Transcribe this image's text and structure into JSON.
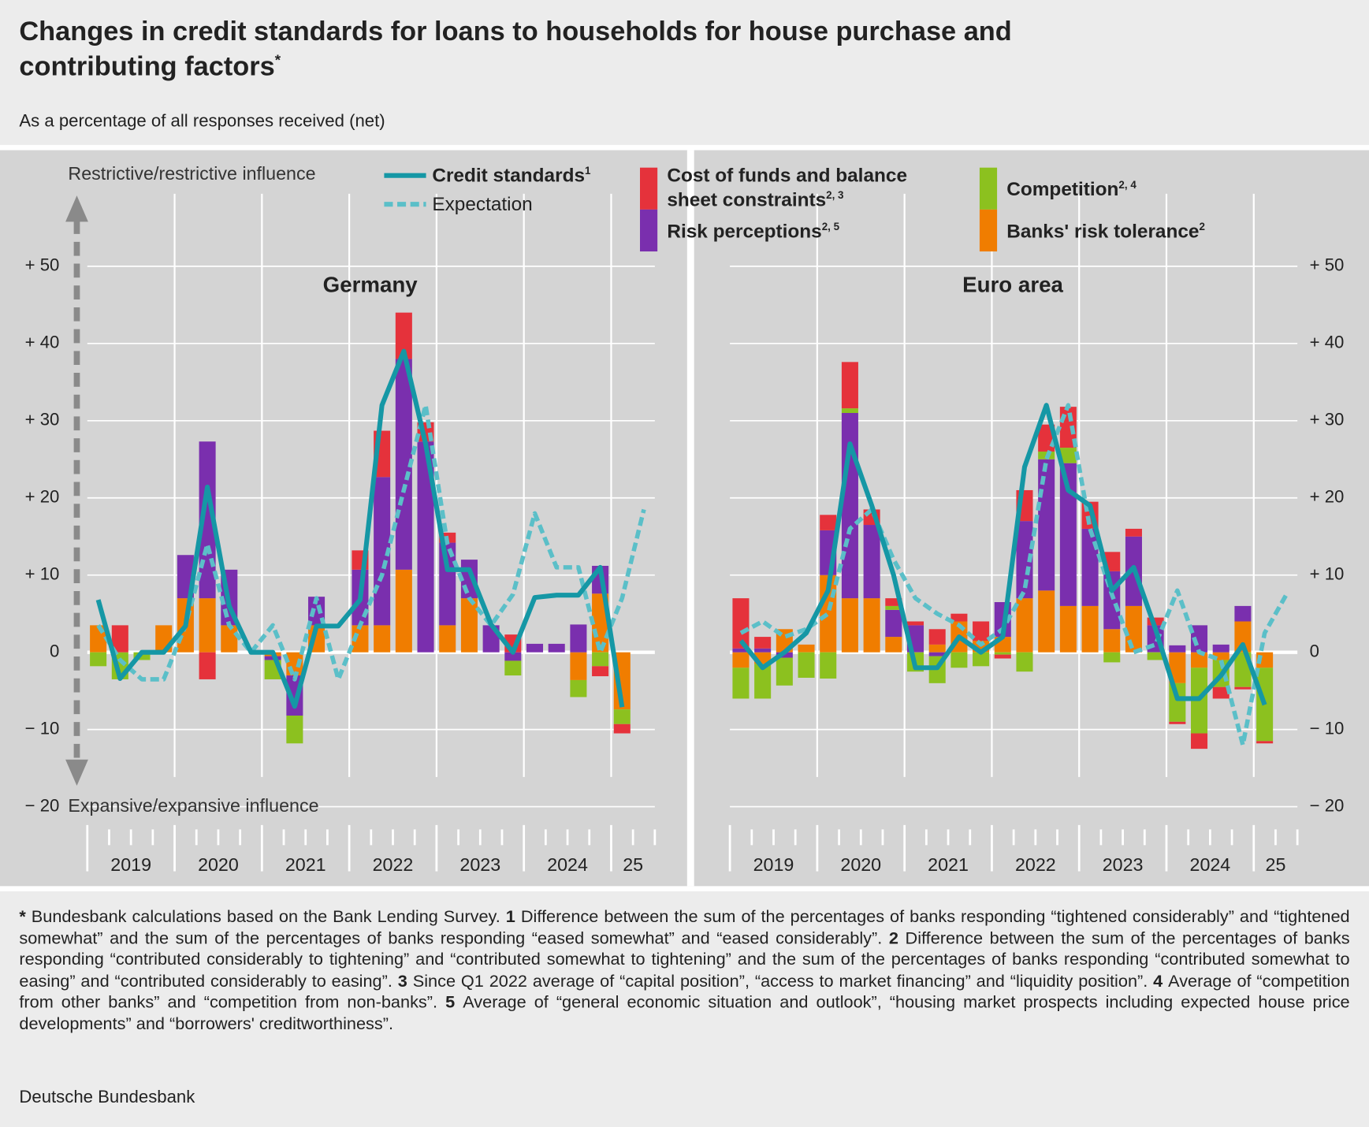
{
  "chart_data": [
    {
      "type": "combo",
      "page_title": "Changes in credit standards for loans to households for house purchase and contributing factors",
      "page_title_note": "*",
      "subtitle": "As a percentage of all responses received (net)",
      "ylabel_top": "Restrictive/restrictive influence",
      "ylabel_bottom": "Expansive/expansive influence",
      "source": "Deutsche Bundesbank",
      "footnotes": [
        {
          "marker": "*",
          "text": "Bundesbank calculations based on the Bank Lending Survey."
        },
        {
          "marker": "1",
          "text": "Difference between the sum of the percentages of banks responding “tightened considerably” and “tightened somewhat” and the sum of the percentages of banks responding “eased somewhat” and “eased considerably”."
        },
        {
          "marker": "2",
          "text": "Difference between the sum of the percentages of banks responding “contributed considerably to tightening” and “contributed somewhat to tightening” and the sum of the percentages of banks responding “contributed somewhat to easing” and “contributed considerably to easing”."
        },
        {
          "marker": "3",
          "text": "Since Q1 2022 average of “capital position”, “access to market financing” and “liquidity position”."
        },
        {
          "marker": "4",
          "text": "Average of “competition from other banks” and “competition from non-banks”."
        },
        {
          "marker": "5",
          "text": "Average of “general economic situation and outlook”, “housing market prospects including expected house price developments” and “borrowers' creditworthiness”."
        }
      ],
      "title": "Germany",
      "years": [
        "2019",
        "2020",
        "2021",
        "2022",
        "2023",
        "2024",
        "25"
      ],
      "ylim": [
        -20,
        50
      ],
      "yticks": [
        {
          "value": -20,
          "label": "− 20"
        },
        {
          "value": -10,
          "label": "− 10"
        },
        0,
        {
          "value": 10,
          "label": "+ 10"
        },
        {
          "value": 20,
          "label": "+ 20"
        },
        {
          "value": 30,
          "label": "+ 30"
        },
        {
          "value": 40,
          "label": "+ 40"
        },
        {
          "value": 50,
          "label": "+ 50"
        }
      ],
      "grid": true,
      "series": [
        {
          "name": "Credit standards",
          "note": "1",
          "type": "line",
          "color": "#1597a5",
          "values": [
            6.8,
            -3.4,
            0,
            0,
            3.4,
            21.4,
            6,
            0,
            0,
            -7,
            3.4,
            3.4,
            6.8,
            32,
            39,
            27,
            10.7,
            10.7,
            3.6,
            0,
            7.1,
            7.4,
            7.4,
            11,
            -7.1,
            null
          ]
        },
        {
          "name": "Expectation",
          "type": "line",
          "dashed": true,
          "color": "#5bbfc8",
          "values": [
            3.5,
            -1,
            -3.5,
            -3.5,
            3.5,
            14,
            3.5,
            0,
            3.5,
            -3.5,
            7,
            -3.5,
            3.5,
            10,
            21,
            32,
            14,
            7,
            3.5,
            7.5,
            18,
            11,
            11,
            0,
            7,
            18.5
          ]
        },
        {
          "name": "Cost of funds and balance sheet constraints",
          "note": "2, 3",
          "type": "bar",
          "color": "#e5323b",
          "values": [
            0,
            3.5,
            0,
            0,
            0,
            -3.5,
            0,
            0,
            0,
            0,
            0,
            0,
            2.5,
            6,
            6,
            2.5,
            1.3,
            0,
            0,
            2.3,
            0,
            0,
            0,
            -1.3,
            -1.2,
            null
          ]
        },
        {
          "name": "Risk perceptions",
          "note": "2, 5",
          "type": "bar",
          "color": "#7a2fae",
          "values": [
            0,
            0,
            0,
            0,
            5.6,
            20.3,
            7.2,
            0,
            -0.5,
            -5.2,
            3.7,
            0,
            7.2,
            19.2,
            27.3,
            27.3,
            10.7,
            5,
            3.5,
            -1.1,
            1.1,
            1.1,
            3.6,
            3.6,
            0,
            null
          ]
        },
        {
          "name": "Competition",
          "note": "2, 4",
          "type": "bar",
          "color": "#8cc11f",
          "values": [
            -1.8,
            -3.5,
            -1,
            0,
            0,
            0,
            0,
            0,
            -2.5,
            -3.6,
            0,
            0,
            0,
            0,
            0,
            0,
            0,
            0,
            0,
            -1.9,
            0,
            0,
            -2.2,
            -1.8,
            -1.9,
            null
          ]
        },
        {
          "name": "Banks' risk tolerance",
          "note": "2",
          "type": "bar",
          "color": "#f07d00",
          "values": [
            3.5,
            0,
            0,
            3.5,
            7,
            7,
            3.5,
            0,
            -0.5,
            -3,
            3.5,
            0,
            3.5,
            3.5,
            10.7,
            0,
            3.5,
            7,
            0,
            0,
            0,
            0,
            -3.6,
            7.6,
            -7.4,
            null
          ]
        }
      ]
    },
    {
      "type": "combo",
      "title": "Euro area",
      "years": [
        "2019",
        "2020",
        "2021",
        "2022",
        "2023",
        "2024",
        "25"
      ],
      "ylim": [
        -20,
        50
      ],
      "yticks": [
        {
          "value": -20,
          "label": "− 20"
        },
        {
          "value": -10,
          "label": "− 10"
        },
        0,
        {
          "value": 10,
          "label": "+ 10"
        },
        {
          "value": 20,
          "label": "+ 20"
        },
        {
          "value": 30,
          "label": "+ 30"
        },
        {
          "value": 40,
          "label": "+ 40"
        },
        {
          "value": 50,
          "label": "+ 50"
        }
      ],
      "grid": true,
      "series": [
        {
          "type": "line",
          "color": "#1597a5",
          "values": [
            1.5,
            -2,
            0,
            2.5,
            8,
            27,
            19,
            10,
            -2,
            -2,
            2,
            0,
            2,
            24,
            32,
            21,
            19,
            8,
            11,
            3,
            -6,
            -6,
            -3,
            1,
            -6.8,
            null
          ]
        },
        {
          "type": "line",
          "dashed": true,
          "color": "#5bbfc8",
          "values": [
            2.5,
            4,
            2,
            3,
            5,
            16,
            18.5,
            12,
            7,
            5,
            3.5,
            1,
            3,
            8,
            25,
            32,
            16,
            7.5,
            0,
            1,
            8,
            0,
            -1,
            -12,
            2.5,
            7.5
          ]
        },
        {
          "type": "bar",
          "color": "#e5323b",
          "values": [
            6.5,
            1.5,
            0,
            0,
            2,
            6,
            2,
            1,
            0.5,
            2,
            1,
            2.5,
            -0.5,
            4,
            3.5,
            5.3,
            3.5,
            2.5,
            1,
            1,
            -0.3,
            -2,
            -1.5,
            -0.3,
            -0.3,
            null
          ]
        },
        {
          "type": "bar",
          "color": "#7a2fae",
          "values": [
            0.5,
            0.5,
            -0.7,
            0,
            5.8,
            24,
            9.5,
            3.5,
            3.5,
            -0.5,
            0,
            0,
            4.5,
            10,
            17,
            18.5,
            10,
            7.5,
            9,
            3.5,
            0.9,
            3.5,
            1,
            2,
            0,
            null
          ]
        },
        {
          "type": "bar",
          "color": "#8cc11f",
          "values": [
            -4,
            -4.5,
            -3.6,
            -3.3,
            -3.4,
            0.6,
            0,
            0.5,
            -2.5,
            -3.5,
            -2,
            -1.8,
            -0.3,
            -2.5,
            1,
            2,
            0,
            -1.3,
            0,
            -1,
            -5,
            -8.5,
            -3.5,
            -4.5,
            -9.5,
            null
          ]
        },
        {
          "type": "bar",
          "color": "#f07d00",
          "values": [
            -2,
            -1.5,
            3,
            1,
            10,
            7,
            7,
            2,
            0,
            1,
            4,
            1.5,
            2,
            7,
            8,
            6,
            6,
            3,
            6,
            0,
            -4,
            -2,
            -1,
            4,
            -2,
            null
          ]
        }
      ]
    }
  ]
}
